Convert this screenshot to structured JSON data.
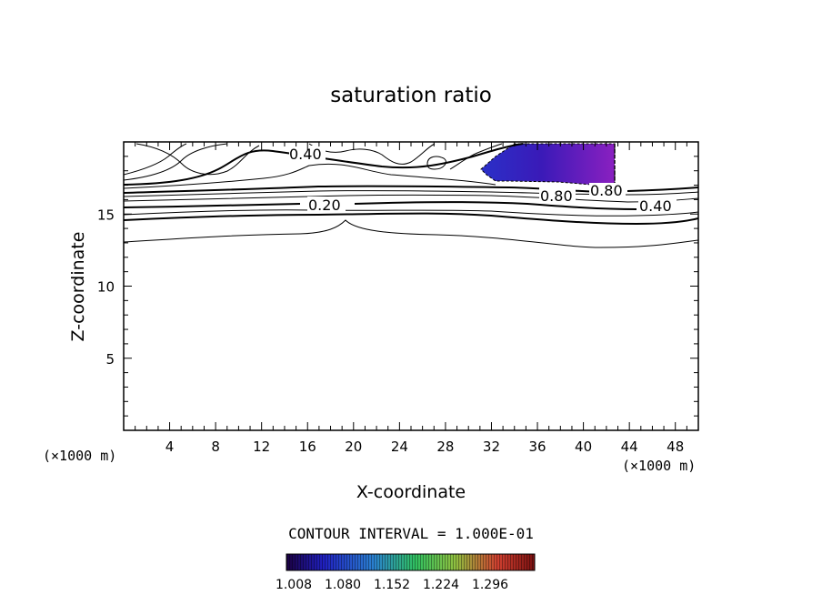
{
  "chart_data": {
    "type": "contour",
    "title": "saturation ratio",
    "xlabel": "X-coordinate",
    "ylabel": "Z-coordinate",
    "x_unit_left": "(×1000 m)",
    "x_unit_right": "(×1000 m)",
    "xlim": [
      0,
      50
    ],
    "ylim": [
      0,
      20
    ],
    "x_ticks": [
      4,
      8,
      12,
      16,
      20,
      24,
      28,
      32,
      36,
      40,
      44,
      48
    ],
    "y_ticks": [
      5,
      10,
      15
    ],
    "contour_interval_text": "CONTOUR INTERVAL = 1.000E-01",
    "contour_labels": [
      {
        "text": "0.40",
        "x": 15.8,
        "z": 19.1
      },
      {
        "text": "0.20",
        "x": 17.1,
        "z": 15.6
      },
      {
        "text": "0.80",
        "x": 38.5,
        "z": 16.3
      },
      {
        "text": "0.80",
        "x": 42.5,
        "z": 16.6
      },
      {
        "text": "0.40",
        "x": 46.0,
        "z": 15.5
      }
    ],
    "supersaturated_region": {
      "x_range": [
        31,
        42.5
      ],
      "z_range": [
        17.3,
        20
      ],
      "value_range": [
        1.008,
        1.33
      ]
    },
    "colorbar": {
      "labels": [
        "1.008",
        "1.080",
        "1.152",
        "1.224",
        "1.296"
      ],
      "colors": [
        "#1a0040",
        "#2020c0",
        "#2a80d0",
        "#30c060",
        "#90c040",
        "#d04030",
        "#7a1010"
      ]
    },
    "grid": false
  }
}
